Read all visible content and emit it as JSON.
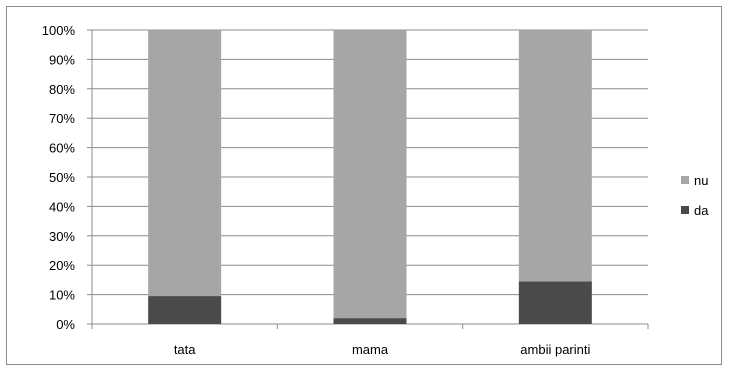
{
  "chart_data": {
    "type": "bar",
    "stacked": true,
    "percent": true,
    "categories": [
      "tata",
      "mama",
      "ambii parinti"
    ],
    "series": [
      {
        "name": "da",
        "values": [
          9.5,
          2,
          14.5
        ],
        "color": "#4a4a4a"
      },
      {
        "name": "nu",
        "values": [
          90.5,
          98,
          85.5
        ],
        "color": "#a6a6a6"
      }
    ],
    "ylim": [
      0,
      100
    ],
    "yticks": [
      "0%",
      "10%",
      "20%",
      "30%",
      "40%",
      "50%",
      "60%",
      "70%",
      "80%",
      "90%",
      "100%"
    ],
    "grid": true,
    "legend": {
      "position": "right",
      "entries": [
        "nu",
        "da"
      ]
    }
  }
}
